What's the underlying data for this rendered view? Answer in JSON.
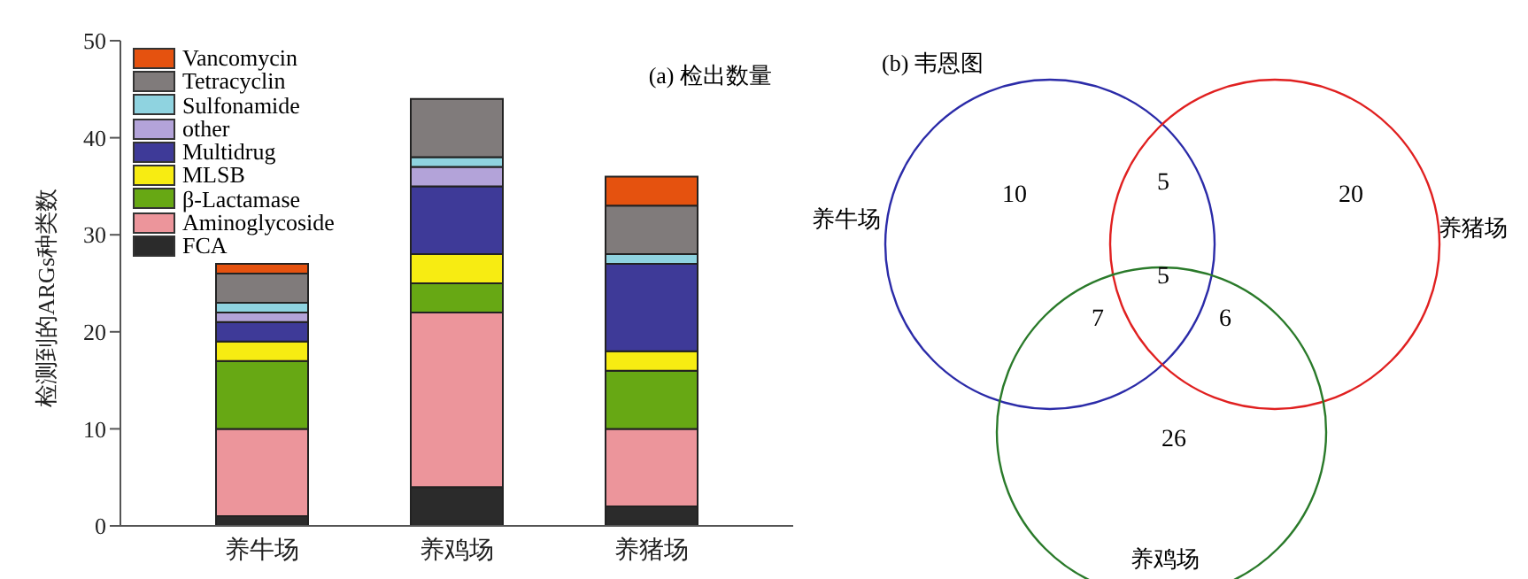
{
  "chart_data": [
    {
      "type": "bar",
      "ylabel": "检测到的ARGs种类数",
      "annotations": [
        "(a) 检出数量"
      ],
      "categories": [
        "养牛场",
        "养鸡场",
        "养猪场"
      ],
      "stacked": true,
      "ylim": [
        0,
        50
      ],
      "yticks": [
        0,
        10,
        20,
        30,
        40,
        50
      ],
      "legend": "top left",
      "grid": false,
      "series": [
        {
          "name": "FCA",
          "color": "#2b2b2b",
          "values": [
            1,
            4,
            2
          ]
        },
        {
          "name": "Aminoglycoside",
          "color": "#ec959b",
          "values": [
            9,
            18,
            8
          ]
        },
        {
          "name": "β-Lactamase",
          "color": "#67a814",
          "values": [
            7,
            3,
            6
          ]
        },
        {
          "name": "MLSB",
          "color": "#f7ec12",
          "values": [
            2,
            3,
            2
          ]
        },
        {
          "name": "Multidrug",
          "color": "#3e3a98",
          "values": [
            2,
            7,
            9
          ]
        },
        {
          "name": "other",
          "color": "#b3a3d9",
          "values": [
            1,
            2,
            0
          ]
        },
        {
          "name": "Sulfonamide",
          "color": "#8fd3e0",
          "values": [
            1,
            1,
            1
          ]
        },
        {
          "name": "Tetracyclin",
          "color": "#807b7b",
          "values": [
            3,
            6,
            5
          ]
        },
        {
          "name": "Vancomycin",
          "color": "#e5520f",
          "values": [
            1,
            0,
            3
          ]
        }
      ]
    },
    {
      "type": "other",
      "title": "(b) 韦恩图",
      "colors": [
        "#2b2ba8",
        "#e02020",
        "#2a7a2a"
      ],
      "annotations": [
        "养牛场",
        "养猪场",
        "养鸡场",
        "10",
        "20",
        "26",
        "5",
        "7",
        "6",
        "5"
      ]
    }
  ]
}
